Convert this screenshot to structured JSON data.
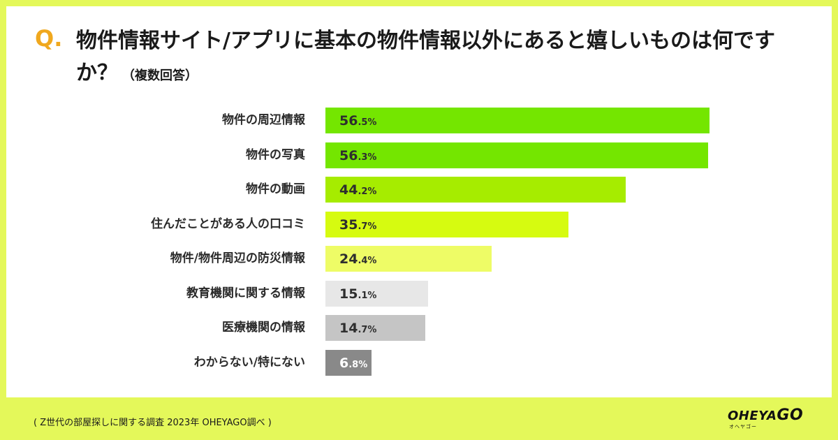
{
  "question": {
    "mark": "Q.",
    "text": "物件情報サイト/アプリに基本の物件情報以外にあると嬉しいものは何ですか？",
    "subtext": "（複数回答）"
  },
  "chart_data": {
    "type": "bar",
    "orientation": "horizontal",
    "title": "物件情報サイト/アプリに基本の物件情報以外にあると嬉しいものは何ですか？（複数回答）",
    "unit": "%",
    "xlim": [
      0,
      100
    ],
    "categories": [
      "物件の周辺情報",
      "物件の写真",
      "物件の動画",
      "住んだことがある人の口コミ",
      "物件/物件周辺の防災情報",
      "教育機関に関する情報",
      "医療機関の情報",
      "わからない/特にない"
    ],
    "values": [
      56.5,
      56.3,
      44.2,
      35.7,
      24.4,
      15.1,
      14.7,
      6.8
    ],
    "colors": [
      "#74e600",
      "#74e600",
      "#a6ec00",
      "#d6fb10",
      "#eefc66",
      "#e7e7e7",
      "#c5c5c5",
      "#898989"
    ],
    "value_text_light": [
      false,
      false,
      false,
      false,
      false,
      false,
      false,
      true
    ]
  },
  "footer": {
    "source": "( Z世代の部屋探しに関する調査 2023年 OHEYAGO調べ )"
  },
  "logo": {
    "main": "OHEYA",
    "go": "GO",
    "kana": "オヘヤゴー"
  }
}
